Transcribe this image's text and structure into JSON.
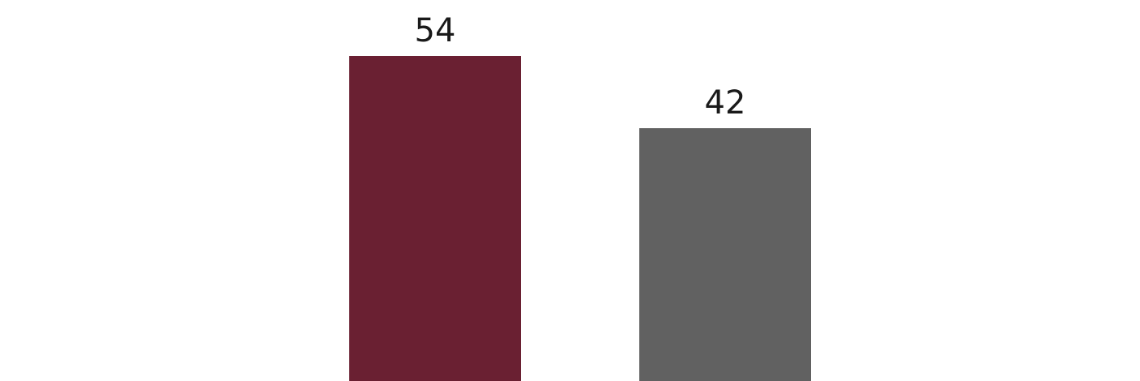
{
  "chart_data": {
    "type": "bar",
    "categories": [
      "",
      ""
    ],
    "values": [
      54,
      42
    ],
    "colors": [
      "#6a2032",
      "#616161"
    ],
    "data_labels": [
      "54",
      "42"
    ],
    "ylim": [
      0,
      60
    ],
    "grid": false,
    "legend": "none",
    "title": "",
    "xlabel": "",
    "ylabel": ""
  }
}
